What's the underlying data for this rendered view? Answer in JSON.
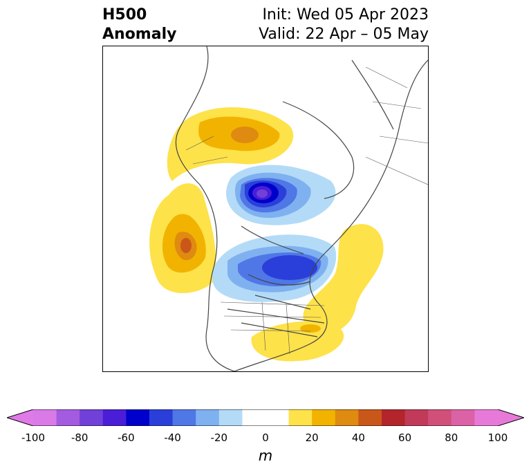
{
  "title": {
    "left_line1": "H500",
    "left_line2": "Anomaly",
    "right_line1": "Init: Wed 05 Apr 2023",
    "right_line2": "Valid: 22 Apr – 05 May"
  },
  "map": {
    "projection": "north-polar stereographic",
    "field": "500 hPa geopotential height anomaly",
    "features": [
      {
        "name": "ridge-alaska-west-coast",
        "sign": "positive",
        "peak_m": 45
      },
      {
        "name": "ridge-siberia",
        "sign": "positive",
        "peak_m": 35
      },
      {
        "name": "trough-arctic-ocean",
        "sign": "negative",
        "peak_m": -80
      },
      {
        "name": "trough-canada-hudson-bay",
        "sign": "negative",
        "peak_m": -60
      },
      {
        "name": "ridge-north-atlantic",
        "sign": "positive",
        "peak_m": 20
      },
      {
        "name": "ridge-southeast-us",
        "sign": "positive",
        "peak_m": 30
      }
    ]
  },
  "colorbar": {
    "units": "m",
    "ticks": [
      "-100",
      "-80",
      "-60",
      "-40",
      "-20",
      "0",
      "20",
      "40",
      "60",
      "80",
      "100"
    ],
    "tick_values": [
      -100,
      -80,
      -60,
      -40,
      -20,
      0,
      20,
      40,
      60,
      80,
      100
    ],
    "bounds": [
      -100,
      100
    ],
    "colors": [
      "#d97ae6",
      "#a35ce0",
      "#7040d9",
      "#4a1ed6",
      "#0000cc",
      "#2a3fd9",
      "#4f77e6",
      "#7fb1f0",
      "#b3dbf7",
      "#ffffff",
      "#ffffff",
      "#fde24a",
      "#f1b300",
      "#df8a10",
      "#c9571a",
      "#b3252a",
      "#c23a5a",
      "#d0507a",
      "#db62a6",
      "#e77ad9"
    ],
    "extend_low": "#e07ae8",
    "extend_high": "#e77ad9"
  }
}
